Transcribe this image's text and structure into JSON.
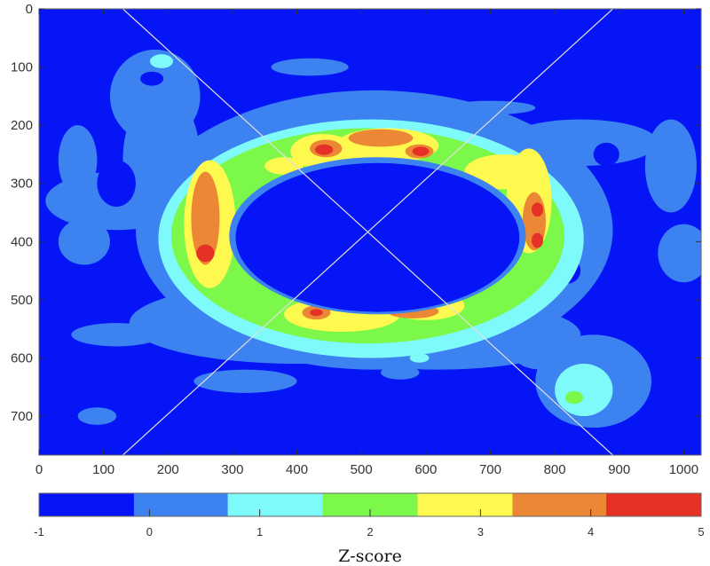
{
  "chart_data": {
    "type": "heatmap",
    "subtype": "filled-contour",
    "title": "",
    "xlabel": "",
    "ylabel": "",
    "xlim": [
      0,
      1027
    ],
    "ylim": [
      767,
      0
    ],
    "y_reversed": true,
    "x_ticks": [
      0,
      100,
      200,
      300,
      400,
      500,
      600,
      700,
      800,
      900,
      1000
    ],
    "y_ticks": [
      0,
      100,
      200,
      300,
      400,
      500,
      600,
      700
    ],
    "grid": false,
    "colorbar": {
      "label": "Z-score",
      "orientation": "horizontal",
      "position": "bottom",
      "range": [
        -1,
        5
      ],
      "ticks": [
        -1,
        0,
        1,
        2,
        3,
        4,
        5
      ],
      "levels": [
        {
          "from": -1.0,
          "to": -0.14,
          "color": "#0515F5"
        },
        {
          "from": -0.14,
          "to": 0.71,
          "color": "#3C82F0"
        },
        {
          "from": 0.71,
          "to": 1.57,
          "color": "#7EFAFA"
        },
        {
          "from": 1.57,
          "to": 2.43,
          "color": "#7CF84A"
        },
        {
          "from": 2.43,
          "to": 3.29,
          "color": "#FEF94F"
        },
        {
          "from": 3.29,
          "to": 4.14,
          "color": "#EC8735"
        },
        {
          "from": 4.14,
          "to": 5.0,
          "color": "#E63226"
        }
      ]
    },
    "features": {
      "ring": {
        "center": [
          520,
          395
        ],
        "inner_radii": [
          225,
          130
        ],
        "description": "elliptical high Z-score ring with low-value interior"
      },
      "peaks": [
        {
          "x": 260,
          "y": 420,
          "z": 4.6
        },
        {
          "x": 265,
          "y": 330,
          "z": 3.8
        },
        {
          "x": 440,
          "y": 240,
          "z": 4.5
        },
        {
          "x": 525,
          "y": 225,
          "z": 3.9
        },
        {
          "x": 590,
          "y": 245,
          "z": 4.4
        },
        {
          "x": 770,
          "y": 345,
          "z": 4.4
        },
        {
          "x": 770,
          "y": 395,
          "z": 4.5
        },
        {
          "x": 430,
          "y": 520,
          "z": 4.4
        },
        {
          "x": 580,
          "y": 520,
          "z": 3.8
        },
        {
          "x": 830,
          "y": 670,
          "z": 1.8
        },
        {
          "x": 190,
          "y": 95,
          "z": 1.0
        }
      ]
    },
    "overlay": {
      "diagonal_lines": [
        {
          "from": [
            130,
            0
          ],
          "to": [
            890,
            767
          ],
          "color": "#E0E0E0"
        },
        {
          "from": [
            130,
            767
          ],
          "to": [
            890,
            0
          ],
          "color": "#E0E0E0"
        }
      ]
    }
  },
  "axes": {
    "x_tick_labels": [
      "0",
      "100",
      "200",
      "300",
      "400",
      "500",
      "600",
      "700",
      "800",
      "900",
      "1000"
    ],
    "y_tick_labels": [
      "0",
      "100",
      "200",
      "300",
      "400",
      "500",
      "600",
      "700"
    ]
  },
  "colorbar": {
    "tick_labels": [
      "-1",
      "0",
      "1",
      "2",
      "3",
      "4",
      "5"
    ],
    "label": "Z-score"
  }
}
